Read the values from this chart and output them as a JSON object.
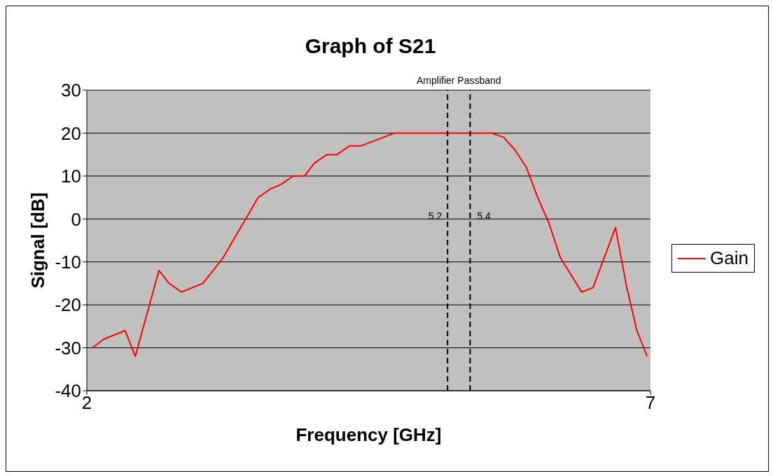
{
  "chart_data": {
    "type": "line",
    "title": "Graph of S21",
    "xlabel": "Frequency [GHz]",
    "ylabel": "Signal [dB]",
    "xlim": [
      2,
      7
    ],
    "xticks": [
      2,
      7
    ],
    "ylim": [
      -40,
      30
    ],
    "yticks": [
      -40,
      -30,
      -20,
      -10,
      0,
      10,
      20,
      30
    ],
    "grid": "y",
    "legend": "right",
    "marker": "none",
    "line_style": "solid",
    "series": [
      {
        "name": "Gain",
        "color": "#ff0000",
        "x": [
          2.05,
          2.15,
          2.34,
          2.43,
          2.64,
          2.73,
          2.84,
          3.03,
          3.21,
          3.32,
          3.41,
          3.52,
          3.63,
          3.72,
          3.83,
          3.93,
          4.02,
          4.13,
          4.22,
          4.33,
          4.43,
          4.73,
          5.59,
          5.7,
          5.8,
          5.9,
          6.0,
          6.1,
          6.2,
          6.39,
          6.49,
          6.69,
          6.79,
          6.88,
          6.97
        ],
        "values": [
          -30,
          -28,
          -26,
          -32,
          -12,
          -15,
          -17,
          -15,
          -9,
          -4,
          0,
          5,
          7,
          8,
          10,
          10,
          13,
          15,
          15,
          17,
          17,
          20,
          20,
          19,
          16,
          12,
          5,
          -1,
          -9,
          -17,
          -16,
          -2,
          -16,
          -26,
          -32
        ]
      }
    ],
    "ref_lines": [
      {
        "axis": "x",
        "value": 5.2,
        "label": "5.2",
        "color": "#000000",
        "line_style": "dashed"
      },
      {
        "axis": "x",
        "value": 5.4,
        "label": "5.4",
        "color": "#000000",
        "line_style": "dashed"
      }
    ],
    "annotations": [
      "Amplifier Passband"
    ]
  }
}
